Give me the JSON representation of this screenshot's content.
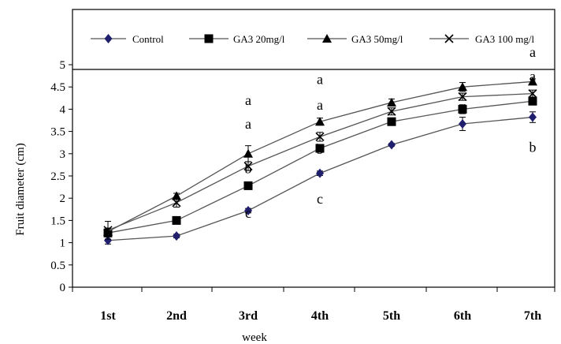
{
  "chart_data": {
    "type": "line",
    "categories": [
      "1st",
      "2nd",
      "3rd",
      "4th",
      "5th",
      "6th",
      "7th"
    ],
    "xlabel": "week",
    "ylabel": "Fruit diameter (cm)",
    "ylim": [
      0,
      5
    ],
    "yticks": [
      "0",
      "0.5",
      "1",
      "1.5",
      "2",
      "2.5",
      "3",
      "3.5",
      "4",
      "4.5",
      "5"
    ],
    "grid": false,
    "legend_position": "top",
    "series": [
      {
        "name": "Control",
        "marker": "diamond",
        "color": "#1f1f6e",
        "values": [
          1.05,
          1.15,
          1.72,
          2.56,
          3.2,
          3.67,
          3.82
        ],
        "errors": [
          0.08,
          0.04,
          0.05,
          0.05,
          0.03,
          0.15,
          0.12
        ]
      },
      {
        "name": "GA3 20mg/l",
        "marker": "square",
        "color": "#000000",
        "values": [
          1.22,
          1.5,
          2.28,
          3.12,
          3.72,
          4.0,
          4.18
        ],
        "errors": [
          0.08,
          0.04,
          0.06,
          0.06,
          0.05,
          0.1,
          0.08
        ]
      },
      {
        "name": "GA3 50mg/l",
        "marker": "triangle",
        "color": "#000000",
        "values": [
          1.25,
          2.05,
          3.0,
          3.72,
          4.15,
          4.5,
          4.62
        ],
        "errors": [
          0.08,
          0.06,
          0.18,
          0.08,
          0.08,
          0.1,
          0.06
        ]
      },
      {
        "name": "GA3 100 mg/l",
        "marker": "x",
        "color": "#000000",
        "values": [
          1.28,
          1.9,
          2.72,
          3.38,
          3.95,
          4.28,
          4.35
        ],
        "errors": [
          0.2,
          0.1,
          0.1,
          0.1,
          0.08,
          0.08,
          0.08
        ]
      }
    ],
    "annotations": [
      {
        "category": "3rd",
        "y": 4.2,
        "text": "a"
      },
      {
        "category": "3rd",
        "y": 3.67,
        "text": "a"
      },
      {
        "category": "3rd",
        "y": 2.67,
        "text": "b"
      },
      {
        "category": "3rd",
        "y": 1.67,
        "text": "c"
      },
      {
        "category": "4th",
        "y": 4.67,
        "text": "a"
      },
      {
        "category": "4th",
        "y": 4.1,
        "text": "a"
      },
      {
        "category": "4th",
        "y": 3.1,
        "text": "b"
      },
      {
        "category": "4th",
        "y": 1.99,
        "text": "c"
      },
      {
        "category": "7th",
        "y": 5.28,
        "text": "a"
      },
      {
        "category": "7th",
        "y": 4.74,
        "text": "a"
      },
      {
        "category": "7th",
        "y": 3.15,
        "text": "b"
      }
    ]
  }
}
